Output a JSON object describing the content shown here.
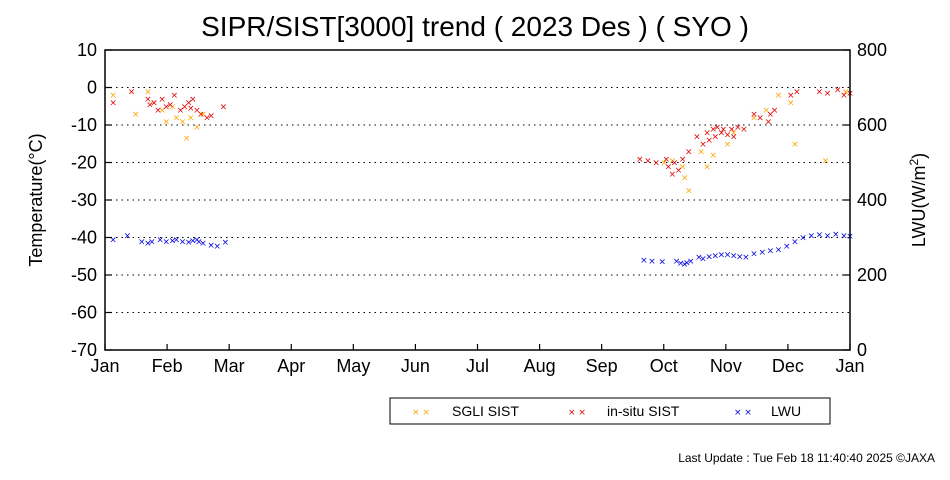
{
  "chart_data": {
    "type": "scatter",
    "title": "SIPR/SIST[3000] trend ( 2023 Des ) ( SYO )",
    "ylabel": "Temperature(°C)",
    "y2label": "LWU(W/m²)",
    "x_ticks": [
      "Jan",
      "Feb",
      "Mar",
      "Apr",
      "May",
      "Jun",
      "Jul",
      "Aug",
      "Sep",
      "Oct",
      "Nov",
      "Dec",
      "Jan"
    ],
    "y_ticks": [
      10,
      0,
      -10,
      -20,
      -30,
      -40,
      -50,
      -60,
      -70
    ],
    "y2_ticks": [
      800,
      600,
      400,
      200,
      0
    ],
    "ylim": [
      -70,
      10
    ],
    "y2lim": [
      0,
      800
    ],
    "grid": "horizontal dotted",
    "legend_position": "bottom",
    "series": [
      {
        "name": "SGLI SIST",
        "color": "#ffa500",
        "axis": "left",
        "x_unit": "day of year",
        "points": [
          [
            4,
            -2
          ],
          [
            15,
            -7
          ],
          [
            21,
            -1
          ],
          [
            24,
            -4
          ],
          [
            28,
            -6
          ],
          [
            30,
            -9
          ],
          [
            33,
            -5
          ],
          [
            35,
            -8
          ],
          [
            38,
            -9
          ],
          [
            40,
            -13.5
          ],
          [
            42,
            -8
          ],
          [
            45,
            -10.5
          ],
          [
            48,
            -7
          ],
          [
            274,
            -20
          ],
          [
            278,
            -19.5
          ],
          [
            283,
            -21
          ],
          [
            284,
            -24
          ],
          [
            286,
            -27.5
          ],
          [
            292,
            -17
          ],
          [
            295,
            -21
          ],
          [
            298,
            -18
          ],
          [
            305,
            -15
          ],
          [
            308,
            -12
          ],
          [
            318,
            -8
          ],
          [
            324,
            -6
          ],
          [
            330,
            -2
          ],
          [
            336,
            -4
          ],
          [
            338,
            -15
          ],
          [
            353,
            -19.5
          ],
          [
            363,
            -1
          ]
        ]
      },
      {
        "name": "in-situ SIST",
        "color": "#e00000",
        "axis": "left",
        "x_unit": "day of year",
        "points": [
          [
            4,
            -4
          ],
          [
            13,
            -1
          ],
          [
            21,
            -3
          ],
          [
            22,
            -4.5
          ],
          [
            24,
            -4
          ],
          [
            26,
            -6
          ],
          [
            28,
            -3
          ],
          [
            30,
            -5
          ],
          [
            32,
            -4.5
          ],
          [
            34,
            -2
          ],
          [
            37,
            -6
          ],
          [
            39,
            -5
          ],
          [
            41,
            -4
          ],
          [
            42,
            -5.5
          ],
          [
            43,
            -3
          ],
          [
            45,
            -6
          ],
          [
            47,
            -7
          ],
          [
            50,
            -8
          ],
          [
            52,
            -7.5
          ],
          [
            58,
            -5
          ],
          [
            262,
            -19
          ],
          [
            266,
            -19.5
          ],
          [
            270,
            -20
          ],
          [
            275,
            -19
          ],
          [
            276,
            -21
          ],
          [
            278,
            -23
          ],
          [
            279,
            -20
          ],
          [
            281,
            -22
          ],
          [
            283,
            -19
          ],
          [
            286,
            -17
          ],
          [
            290,
            -13
          ],
          [
            293,
            -15
          ],
          [
            295,
            -12
          ],
          [
            296,
            -14
          ],
          [
            298,
            -11
          ],
          [
            299,
            -13
          ],
          [
            300,
            -10.5
          ],
          [
            302,
            -12
          ],
          [
            303,
            -11
          ],
          [
            305,
            -12.5
          ],
          [
            307,
            -11
          ],
          [
            308,
            -13
          ],
          [
            310,
            -10.5
          ],
          [
            313,
            -11
          ],
          [
            318,
            -7
          ],
          [
            321,
            -8
          ],
          [
            325,
            -9
          ],
          [
            326,
            -7
          ],
          [
            328,
            -6
          ],
          [
            336,
            -2
          ],
          [
            339,
            -1
          ],
          [
            350,
            -1
          ],
          [
            354,
            -1.5
          ],
          [
            359,
            -0.5
          ],
          [
            362,
            -2
          ],
          [
            365,
            -1.5
          ]
        ]
      },
      {
        "name": "LWU",
        "color": "#0000dd",
        "axis": "right",
        "x_unit": "day of year",
        "points": [
          [
            4,
            295
          ],
          [
            11,
            305
          ],
          [
            18,
            290
          ],
          [
            21,
            285
          ],
          [
            23,
            290
          ],
          [
            27,
            295
          ],
          [
            30,
            290
          ],
          [
            33,
            292
          ],
          [
            35,
            295
          ],
          [
            38,
            290
          ],
          [
            41,
            288
          ],
          [
            43,
            292
          ],
          [
            45,
            295
          ],
          [
            46,
            290
          ],
          [
            48,
            285
          ],
          [
            52,
            280
          ],
          [
            55,
            278
          ],
          [
            59,
            288
          ],
          [
            264,
            240
          ],
          [
            268,
            238
          ],
          [
            273,
            236
          ],
          [
            280,
            238
          ],
          [
            282,
            232
          ],
          [
            284,
            230
          ],
          [
            285,
            234
          ],
          [
            287,
            238
          ],
          [
            291,
            248
          ],
          [
            293,
            244
          ],
          [
            296,
            250
          ],
          [
            299,
            252
          ],
          [
            302,
            255
          ],
          [
            305,
            255
          ],
          [
            308,
            252
          ],
          [
            311,
            250
          ],
          [
            314,
            248
          ],
          [
            318,
            258
          ],
          [
            322,
            262
          ],
          [
            326,
            265
          ],
          [
            330,
            268
          ],
          [
            334,
            278
          ],
          [
            338,
            290
          ],
          [
            342,
            300
          ],
          [
            346,
            305
          ],
          [
            350,
            308
          ],
          [
            354,
            305
          ],
          [
            358,
            310
          ],
          [
            362,
            306
          ],
          [
            365,
            304
          ]
        ]
      }
    ]
  },
  "footer": "Last Update : Tue Feb 18 11:40:40 2025  ©JAXA"
}
